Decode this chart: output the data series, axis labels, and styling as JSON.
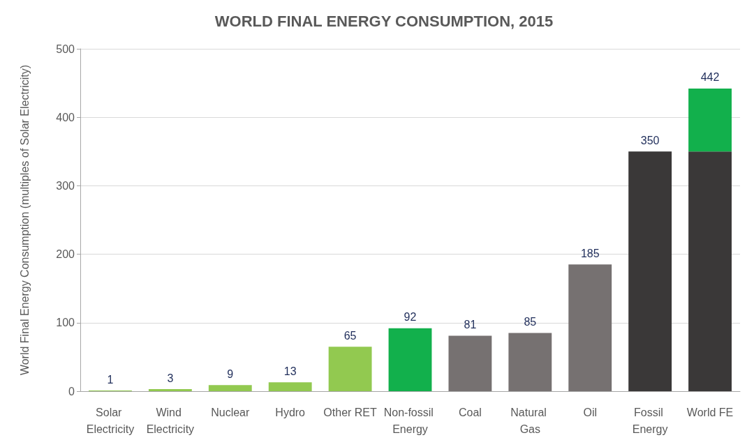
{
  "chart_data": {
    "type": "bar",
    "title": "WORLD FINAL ENERGY CONSUMPTION, 2015",
    "ylabel": "World Final Energy Consumption (multiples of Solar Electricity)",
    "categories": [
      "Solar Electricity",
      "Wind Electricity",
      "Nuclear",
      "Hydro",
      "Other RET",
      "Non-fossil Energy",
      "Coal",
      "Natural Gas",
      "Oil",
      "Fossil Energy",
      "World FE"
    ],
    "stacked": true,
    "series": [
      {
        "colors": [
          "#92c950",
          "#92c950",
          "#92c950",
          "#92c950",
          "#92c950",
          "#12b04c",
          "#767171",
          "#767171",
          "#767171",
          "#3a3838",
          "#3a3838"
        ],
        "values": [
          1,
          3,
          9,
          13,
          65,
          92,
          81,
          85,
          185,
          350,
          350
        ],
        "value_labels": [
          "1",
          "3",
          "9",
          "13",
          "65",
          "92",
          "81",
          "85",
          "185",
          "350",
          null
        ]
      },
      {
        "color": "#12b04c",
        "values": [
          null,
          null,
          null,
          null,
          null,
          null,
          null,
          null,
          null,
          null,
          92
        ]
      }
    ],
    "totals": [
      null,
      null,
      null,
      null,
      null,
      null,
      null,
      null,
      null,
      null,
      "442"
    ],
    "ylim": [
      0,
      500
    ],
    "yticks": [
      0,
      100,
      200,
      300,
      400,
      500
    ],
    "grid": "y"
  }
}
